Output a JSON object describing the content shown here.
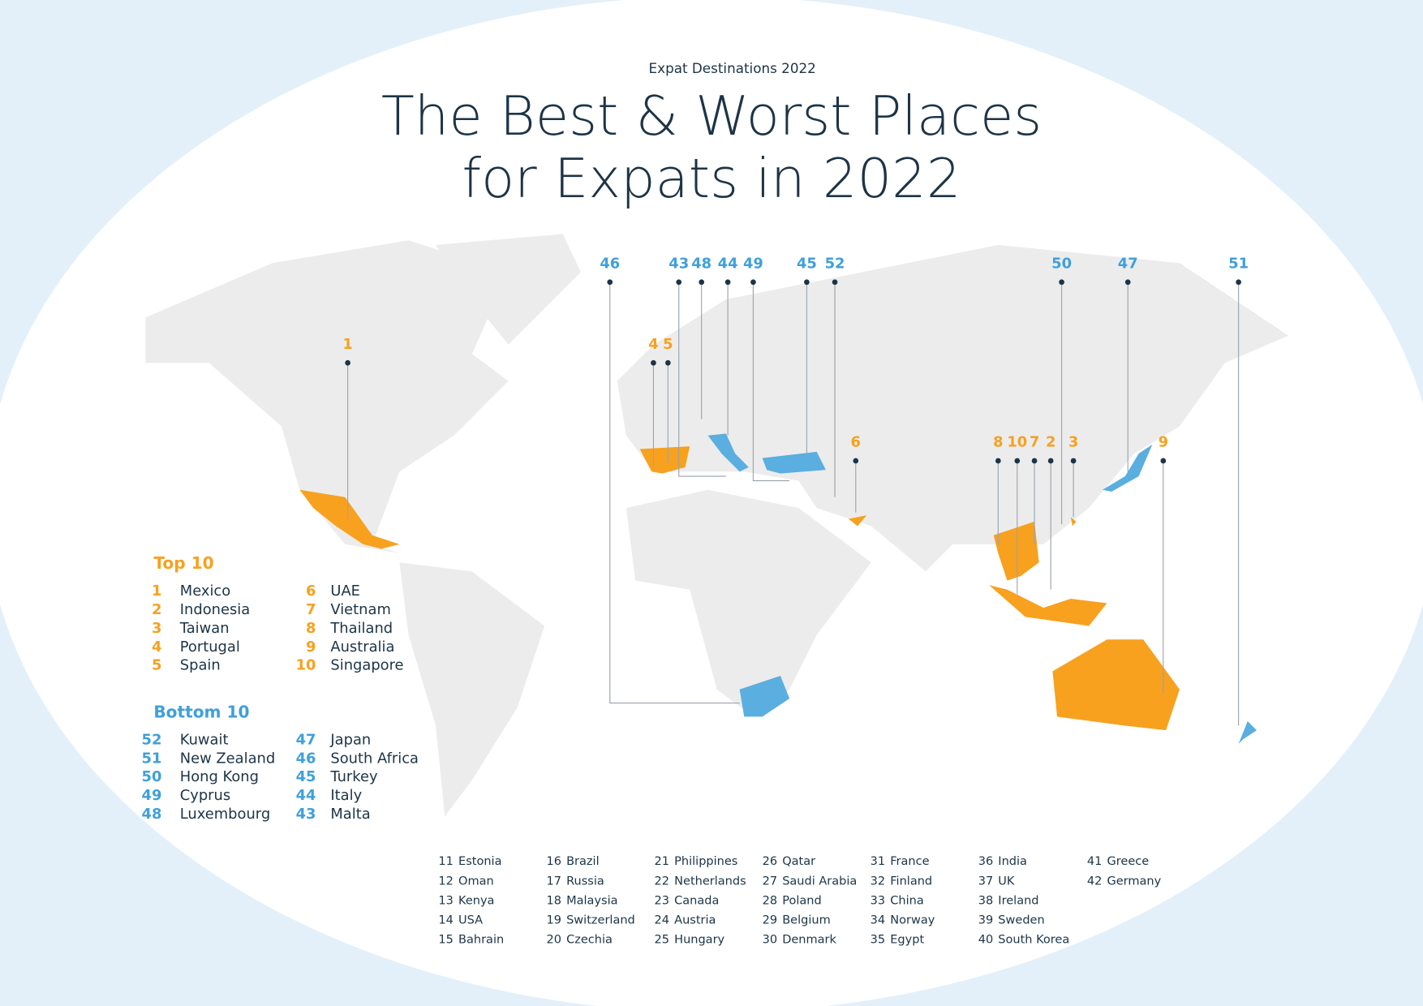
{
  "header": {
    "kicker": "Expat Destinations 2022",
    "title_lines": [
      "The Best & Worst Places",
      "for Expats in 2022"
    ]
  },
  "top10": {
    "heading": "Top 10",
    "color": "#f7a11f",
    "items": [
      {
        "rank": 1,
        "country": "Mexico"
      },
      {
        "rank": 2,
        "country": "Indonesia"
      },
      {
        "rank": 3,
        "country": "Taiwan"
      },
      {
        "rank": 4,
        "country": "Portugal"
      },
      {
        "rank": 5,
        "country": "Spain"
      },
      {
        "rank": 6,
        "country": "UAE"
      },
      {
        "rank": 7,
        "country": "Vietnam"
      },
      {
        "rank": 8,
        "country": "Thailand"
      },
      {
        "rank": 9,
        "country": "Australia"
      },
      {
        "rank": 10,
        "country": "Singapore"
      }
    ]
  },
  "bottom10": {
    "heading": "Bottom 10",
    "color": "#3fa0db",
    "items": [
      {
        "rank": 52,
        "country": "Kuwait"
      },
      {
        "rank": 51,
        "country": "New Zealand"
      },
      {
        "rank": 50,
        "country": "Hong Kong"
      },
      {
        "rank": 49,
        "country": "Cyprus"
      },
      {
        "rank": 48,
        "country": "Luxembourg"
      },
      {
        "rank": 47,
        "country": "Japan"
      },
      {
        "rank": 46,
        "country": "South Africa"
      },
      {
        "rank": 45,
        "country": "Turkey"
      },
      {
        "rank": 44,
        "country": "Italy"
      },
      {
        "rank": 43,
        "country": "Malta"
      }
    ]
  },
  "others": [
    {
      "rank": 11,
      "country": "Estonia"
    },
    {
      "rank": 12,
      "country": "Oman"
    },
    {
      "rank": 13,
      "country": "Kenya"
    },
    {
      "rank": 14,
      "country": "USA"
    },
    {
      "rank": 15,
      "country": "Bahrain"
    },
    {
      "rank": 16,
      "country": "Brazil"
    },
    {
      "rank": 17,
      "country": "Russia"
    },
    {
      "rank": 18,
      "country": "Malaysia"
    },
    {
      "rank": 19,
      "country": "Switzerland"
    },
    {
      "rank": 20,
      "country": "Czechia"
    },
    {
      "rank": 21,
      "country": "Philippines"
    },
    {
      "rank": 22,
      "country": "Netherlands"
    },
    {
      "rank": 23,
      "country": "Canada"
    },
    {
      "rank": 24,
      "country": "Austria"
    },
    {
      "rank": 25,
      "country": "Hungary"
    },
    {
      "rank": 26,
      "country": "Qatar"
    },
    {
      "rank": 27,
      "country": "Saudi Arabia"
    },
    {
      "rank": 28,
      "country": "Poland"
    },
    {
      "rank": 29,
      "country": "Belgium"
    },
    {
      "rank": 30,
      "country": "Denmark"
    },
    {
      "rank": 31,
      "country": "France"
    },
    {
      "rank": 32,
      "country": "Finland"
    },
    {
      "rank": 33,
      "country": "China"
    },
    {
      "rank": 34,
      "country": "Norway"
    },
    {
      "rank": 35,
      "country": "Egypt"
    },
    {
      "rank": 36,
      "country": "India"
    },
    {
      "rank": 37,
      "country": "UK"
    },
    {
      "rank": 38,
      "country": "Ireland"
    },
    {
      "rank": 39,
      "country": "Sweden"
    },
    {
      "rank": 40,
      "country": "South Korea"
    },
    {
      "rank": 41,
      "country": "Greece"
    },
    {
      "rank": 42,
      "country": "Germany"
    }
  ],
  "map": {
    "top_callouts": [
      1,
      4,
      5,
      6,
      8,
      10,
      7,
      2,
      3,
      9
    ],
    "bottom_callouts": [
      46,
      43,
      48,
      44,
      49,
      45,
      52,
      50,
      47,
      51
    ]
  }
}
